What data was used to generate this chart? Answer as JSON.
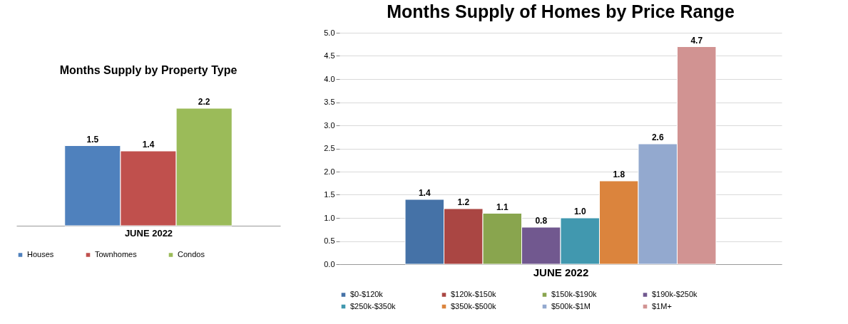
{
  "chart_data": [
    {
      "type": "bar",
      "title": "Months Supply by Property Type",
      "xlabel": "JUNE 2022",
      "categories": [
        null
      ],
      "data_labels": true,
      "legend": "bottom",
      "tick_labels": false,
      "grid": false,
      "series": [
        {
          "name": "Houses",
          "color": "#4f81bd",
          "values": [
            1.5
          ]
        },
        {
          "name": "Townhomes",
          "color": "#c0504d",
          "values": [
            1.4
          ]
        },
        {
          "name": "Condos",
          "color": "#9bbb59",
          "values": [
            2.2
          ]
        }
      ]
    },
    {
      "type": "bar",
      "title": "Months Supply of Homes by Price Range",
      "xlabel": "JUNE 2022",
      "categories": [
        null
      ],
      "data_labels": true,
      "legend": "bottom",
      "grid": "y",
      "tick_labels": "y",
      "ylim": [
        0,
        5
      ],
      "yticks": [
        {
          "value": 0,
          "label": "0.0"
        },
        {
          "value": 0.5,
          "label": "0.5"
        },
        {
          "value": 1,
          "label": "1.0"
        },
        {
          "value": 1.5,
          "label": "1.5"
        },
        {
          "value": 2,
          "label": "2.0"
        },
        {
          "value": 2.5,
          "label": "2.5"
        },
        {
          "value": 3,
          "label": "3.0"
        },
        {
          "value": 3.5,
          "label": "3.5"
        },
        {
          "value": 4,
          "label": "4.0"
        },
        {
          "value": 4.5,
          "label": "4.5"
        },
        {
          "value": 5,
          "label": "5.0"
        }
      ],
      "series": [
        {
          "name": "$0-$120k",
          "color": "#4572a7",
          "values": [
            1.4
          ]
        },
        {
          "name": "$120k-$150k",
          "color": "#aa4643",
          "values": [
            1.2
          ]
        },
        {
          "name": "$150k-$190k",
          "color": "#89a54e",
          "values": [
            1.1
          ]
        },
        {
          "name": "$190k-$250k",
          "color": "#71588f",
          "values": [
            0.8
          ]
        },
        {
          "name": "$250k-$350k",
          "color": "#4198af",
          "values": [
            1.0
          ],
          "value_labels": [
            "1.0"
          ]
        },
        {
          "name": "$350k-$500k",
          "color": "#db843d",
          "values": [
            1.8
          ]
        },
        {
          "name": "$500k-$1M",
          "color": "#93a9cf",
          "values": [
            2.6
          ]
        },
        {
          "name": "$1M+",
          "color": "#d19392",
          "values": [
            4.7
          ]
        }
      ]
    }
  ]
}
